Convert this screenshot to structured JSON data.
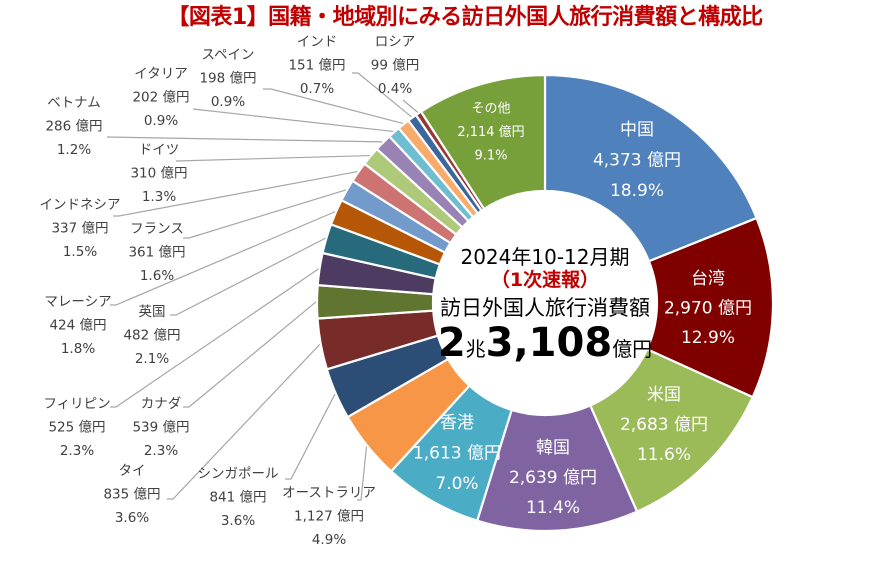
{
  "title": "【図表1】国籍・地域別にみる訪日外国人旅行消費額と構成比",
  "center": {
    "period": "2024年10-12月期",
    "status": "（1次速報）",
    "label": "訪日外国人旅行消費額",
    "total_cho": "2",
    "cho_unit": "兆",
    "total_oku": "3,108",
    "oku_unit": "億円"
  },
  "chart_data": {
    "type": "pie",
    "subtype": "donut",
    "title": "【図表1】国籍・地域別にみる訪日外国人旅行消費額と構成比",
    "unit": "億円",
    "start": "12 o'clock, clockwise",
    "series": [
      {
        "name": "中国",
        "value": 4373,
        "percent": 18.9,
        "color": "#4F81BD"
      },
      {
        "name": "台湾",
        "value": 2970,
        "percent": 12.9,
        "color": "#800000"
      },
      {
        "name": "米国",
        "value": 2683,
        "percent": 11.6,
        "color": "#9BBB59"
      },
      {
        "name": "韓国",
        "value": 2639,
        "percent": 11.4,
        "color": "#8064A2"
      },
      {
        "name": "香港",
        "value": 1613,
        "percent": 7.0,
        "color": "#4BACC6"
      },
      {
        "name": "オーストラリア",
        "value": 1127,
        "percent": 4.9,
        "color": "#F79646"
      },
      {
        "name": "シンガポール",
        "value": 841,
        "percent": 3.6,
        "color": "#2C4D75"
      },
      {
        "name": "タイ",
        "value": 835,
        "percent": 3.6,
        "color": "#772C2A"
      },
      {
        "name": "カナダ",
        "value": 539,
        "percent": 2.3,
        "color": "#5F7530"
      },
      {
        "name": "フィリピン",
        "value": 525,
        "percent": 2.3,
        "color": "#4D3B62"
      },
      {
        "name": "英国",
        "value": 482,
        "percent": 2.1,
        "color": "#276A7C"
      },
      {
        "name": "マレーシア",
        "value": 424,
        "percent": 1.8,
        "color": "#B65708"
      },
      {
        "name": "フランス",
        "value": 361,
        "percent": 1.6,
        "color": "#729ACA"
      },
      {
        "name": "インドネシア",
        "value": 337,
        "percent": 1.5,
        "color": "#CD7371"
      },
      {
        "name": "ドイツ",
        "value": 310,
        "percent": 1.3,
        "color": "#AFC97A"
      },
      {
        "name": "ベトナム",
        "value": 286,
        "percent": 1.2,
        "color": "#9983B5"
      },
      {
        "name": "イタリア",
        "value": 202,
        "percent": 0.9,
        "color": "#6FBDD1"
      },
      {
        "name": "スペイン",
        "value": 198,
        "percent": 0.9,
        "color": "#F9AB6B"
      },
      {
        "name": "インド",
        "value": 151,
        "percent": 0.7,
        "color": "#3A679C"
      },
      {
        "name": "ロシア",
        "value": 99,
        "percent": 0.4,
        "color": "#953735"
      },
      {
        "name": "その他",
        "value": 2114,
        "percent": 9.1,
        "color": "#77A03A"
      }
    ]
  }
}
